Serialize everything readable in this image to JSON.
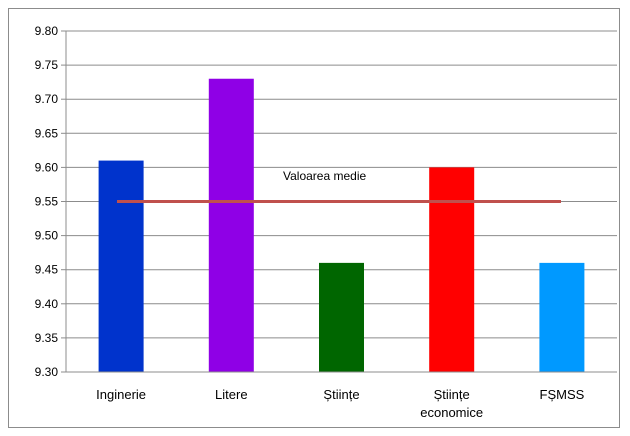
{
  "chart_data": {
    "type": "bar",
    "categories": [
      [
        "Inginerie"
      ],
      [
        "Litere"
      ],
      [
        "Științe"
      ],
      [
        "Științe",
        "economice"
      ],
      [
        "FȘMSS"
      ]
    ],
    "values": [
      9.61,
      9.73,
      9.46,
      9.6,
      9.46
    ],
    "bar_colors": [
      "#0033cc",
      "#8f00e6",
      "#006600",
      "#ff0000",
      "#0099ff"
    ],
    "ylim": [
      9.3,
      9.8
    ],
    "yticks": [
      "9.30",
      "9.35",
      "9.40",
      "9.45",
      "9.50",
      "9.55",
      "9.60",
      "9.65",
      "9.70",
      "9.75",
      "9.80"
    ],
    "grid": true,
    "reference_line": {
      "label": "Valoarea medie",
      "value": 9.55,
      "color": "#c0504d"
    },
    "title": "",
    "xlabel": "",
    "ylabel": ""
  }
}
